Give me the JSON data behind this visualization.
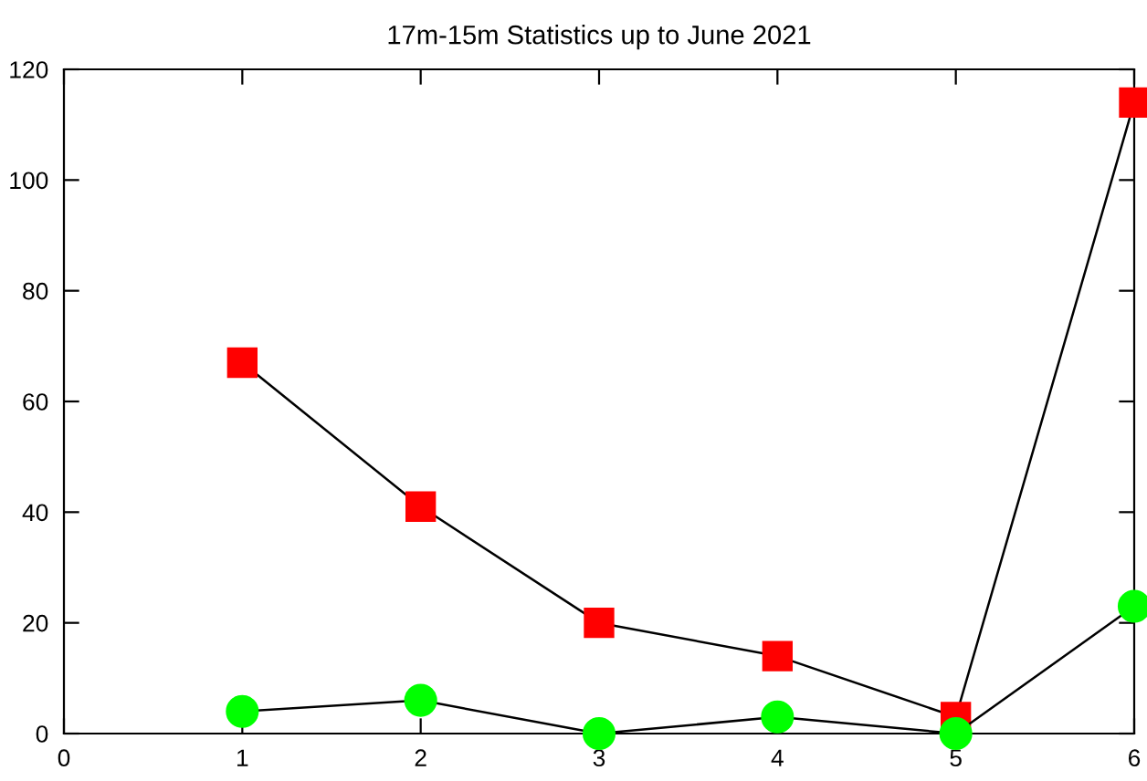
{
  "chart_data": {
    "type": "line",
    "title": "17m-15m Statistics up to June 2021",
    "x": [
      1,
      2,
      3,
      4,
      5,
      6
    ],
    "series": [
      {
        "color": "#ff0000",
        "marker": "square",
        "values": [
          67,
          41,
          20,
          14,
          3,
          114
        ]
      },
      {
        "color": "#00ff00",
        "marker": "circle",
        "values": [
          4,
          6,
          0,
          3,
          0,
          23
        ]
      }
    ],
    "xlim": [
      0,
      6
    ],
    "xticks": [
      0,
      1,
      2,
      3,
      4,
      5,
      6
    ],
    "ylim": [
      0,
      120
    ],
    "yticks": [
      0,
      20,
      40,
      60,
      80,
      100,
      120
    ],
    "grid": false,
    "line_style": "solid"
  }
}
